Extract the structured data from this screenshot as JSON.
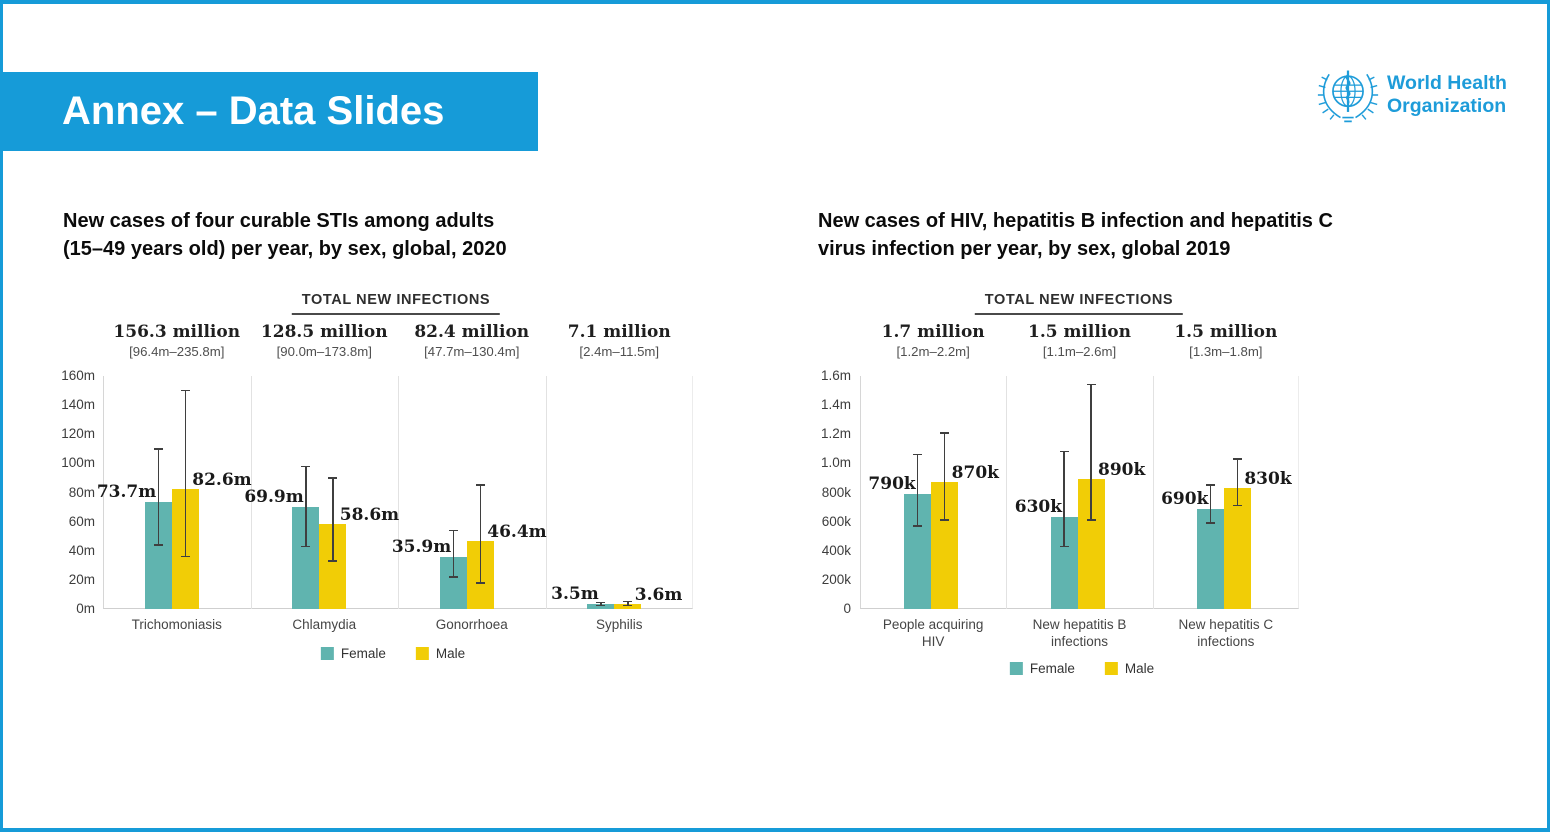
{
  "header": {
    "title": "Annex – Data Slides"
  },
  "logo": {
    "line1": "World Health",
    "line2": "Organization"
  },
  "colors": {
    "accent_blue": "#169bd8",
    "logo_blue": "#1e9cd9",
    "female_teal": "#60b4af",
    "male_yellow": "#f1cd06",
    "error_bar": "#3f3f3f"
  },
  "chart_data": [
    {
      "type": "bar",
      "title_lines": [
        "New cases of four curable STIs among adults",
        "(15–49 years old) per year, by sex, global, 2020"
      ],
      "columns_header": "TOTAL NEW INFECTIONS",
      "unit": "millions of new infections",
      "ylim": [
        0,
        160
      ],
      "grid": false,
      "legend_position": "bottom",
      "yticks": [
        {
          "label": "160m",
          "value": 160
        },
        {
          "label": "140m",
          "value": 140
        },
        {
          "label": "120m",
          "value": 120
        },
        {
          "label": "100m",
          "value": 100
        },
        {
          "label": "80m",
          "value": 80
        },
        {
          "label": "60m",
          "value": 60
        },
        {
          "label": "40m",
          "value": 40
        },
        {
          "label": "20m",
          "value": 20
        },
        {
          "label": "0m",
          "value": 0
        }
      ],
      "legend": [
        "Female",
        "Male"
      ],
      "categories": [
        {
          "label_lines": [
            "Trichomoniasis"
          ],
          "total": "156.3 million",
          "ci": "[96.4m–235.8m]",
          "female": {
            "value": 73.7,
            "label": "73.7m",
            "lo": 44,
            "hi": 110
          },
          "male": {
            "value": 82.6,
            "label": "82.6m",
            "lo": 36,
            "hi": 150
          }
        },
        {
          "label_lines": [
            "Chlamydia"
          ],
          "total": "128.5 million",
          "ci": "[90.0m–173.8m]",
          "female": {
            "value": 69.9,
            "label": "69.9m",
            "lo": 43,
            "hi": 98
          },
          "male": {
            "value": 58.6,
            "label": "58.6m",
            "lo": 33,
            "hi": 90
          }
        },
        {
          "label_lines": [
            "Gonorrhoea"
          ],
          "total": "82.4 million",
          "ci": "[47.7m–130.4m]",
          "female": {
            "value": 35.9,
            "label": "35.9m",
            "lo": 22,
            "hi": 54
          },
          "male": {
            "value": 46.4,
            "label": "46.4m",
            "lo": 18,
            "hi": 85
          }
        },
        {
          "label_lines": [
            "Syphilis"
          ],
          "total": "7.1 million",
          "ci": "[2.4m–11.5m]",
          "female": {
            "value": 3.5,
            "label": "3.5m",
            "lo": 2.4,
            "hi": 4.6
          },
          "male": {
            "value": 3.6,
            "label": "3.6m",
            "lo": 2.4,
            "hi": 5.0
          }
        }
      ]
    },
    {
      "type": "bar",
      "title_lines": [
        "New cases of HIV, hepatitis B infection and hepatitis C",
        "virus infection per year, by sex, global 2019"
      ],
      "columns_header": "TOTAL NEW INFECTIONS",
      "unit": "thousands of new infections",
      "ylim": [
        0,
        1600
      ],
      "grid": false,
      "legend_position": "bottom",
      "yticks": [
        {
          "label": "1.6m",
          "value": 1600
        },
        {
          "label": "1.4m",
          "value": 1400
        },
        {
          "label": "1.2m",
          "value": 1200
        },
        {
          "label": "1.0m",
          "value": 1000
        },
        {
          "label": "800k",
          "value": 800
        },
        {
          "label": "600k",
          "value": 600
        },
        {
          "label": "400k",
          "value": 400
        },
        {
          "label": "200k",
          "value": 200
        },
        {
          "label": "0",
          "value": 0
        }
      ],
      "legend": [
        "Female",
        "Male"
      ],
      "categories": [
        {
          "label_lines": [
            "People acquiring",
            "HIV"
          ],
          "total": "1.7 million",
          "ci": "[1.2m–2.2m]",
          "female": {
            "value": 790,
            "label": "790k",
            "lo": 570,
            "hi": 1060
          },
          "male": {
            "value": 870,
            "label": "870k",
            "lo": 610,
            "hi": 1210
          }
        },
        {
          "label_lines": [
            "New hepatitis B",
            "infections"
          ],
          "total": "1.5 million",
          "ci": "[1.1m–2.6m]",
          "female": {
            "value": 630,
            "label": "630k",
            "lo": 430,
            "hi": 1080
          },
          "male": {
            "value": 890,
            "label": "890k",
            "lo": 610,
            "hi": 1540
          }
        },
        {
          "label_lines": [
            "New hepatitis C",
            "infections"
          ],
          "total": "1.5 million",
          "ci": "[1.3m–1.8m]",
          "female": {
            "value": 690,
            "label": "690k",
            "lo": 590,
            "hi": 850
          },
          "male": {
            "value": 830,
            "label": "830k",
            "lo": 710,
            "hi": 1030
          }
        }
      ]
    }
  ]
}
